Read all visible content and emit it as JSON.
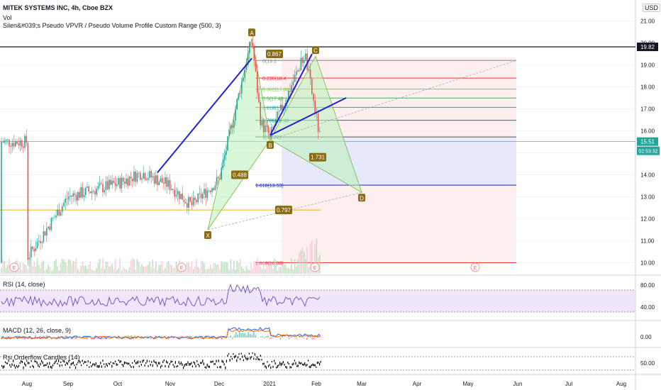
{
  "header": {
    "symbol": "MITEK SYSTEMS INC, 4h, Cboe BZX",
    "vol": "Vol",
    "indicator": "Silen&#039;s Pseudo VPVR / Pseudo Volume Profile Custom Range (500, 3)",
    "currency": "USD"
  },
  "indicators": {
    "rsi": "RSI (14, close)",
    "macd": "MACD (12, 26, close, 9)",
    "rsi_candles": "Rsi Orderflow Candles (14)"
  },
  "price_badges": {
    "high": "19.82",
    "last": "15.51",
    "countdown": "02:53:32"
  },
  "pattern_points": [
    "A",
    "B",
    "C",
    "D",
    "X"
  ],
  "ratio_badges": [
    "0.867",
    "0.488",
    "0.797",
    "1.731"
  ],
  "fib_labels": [
    "0(19.2",
    "0.236(18.4",
    "0.382(17.90",
    "0.5(17.49",
    "0.618(17.07",
    "0.786(16.48",
    "1(15.72)",
    "1.618(13.53)",
    "2.618(10.00)"
  ],
  "colors": {
    "up": "#26a69a",
    "down": "#ef5350",
    "pattern_fill": "#b9f0b9",
    "trendline": "#1e22d6",
    "rsi_band": "#e6d6f5"
  },
  "chart_data": {
    "type": "candlestick",
    "x_axis_labels": [
      "Aug",
      "Sep",
      "Oct",
      "Nov",
      "Dec",
      "2021",
      "Feb",
      "Mar",
      "Apr",
      "May",
      "Jun",
      "Jul",
      "Aug"
    ],
    "y_axis_labels": [
      "21.00",
      "20.00",
      "19.00",
      "18.00",
      "17.00",
      "16.00",
      "15.00",
      "14.00",
      "13.00",
      "12.00",
      "11.00",
      "10.00"
    ],
    "ylim": [
      9.5,
      21.5
    ],
    "rsi_axis_labels": [
      "80.00",
      "40.00"
    ],
    "macd_axis_labels": [
      "0.00"
    ],
    "rsi_candles_axis_labels": [
      "50.00"
    ],
    "events": [
      "E",
      "E",
      "E",
      "E"
    ],
    "approx_close_path": [
      {
        "x": "Aug",
        "y": 10.2
      },
      {
        "x": "Sep",
        "y": 13.0
      },
      {
        "x": "Oct",
        "y": 13.6
      },
      {
        "x": "Oct-mid",
        "y": 14.1
      },
      {
        "x": "Nov",
        "y": 13.5
      },
      {
        "x": "Nov-mid",
        "y": 12.6
      },
      {
        "x": "Dec",
        "y": 13.8
      },
      {
        "x": "Dec-mid",
        "y": 20.2
      },
      {
        "x": "Dec-end",
        "y": 16.3
      },
      {
        "x": "2021",
        "y": 15.8
      },
      {
        "x": "Jan-end",
        "y": 19.5
      },
      {
        "x": "Feb",
        "y": 15.5
      }
    ],
    "harmonic_pattern": {
      "X": 11.5,
      "A": 20.2,
      "B": 15.6,
      "C": 19.4,
      "D": 13.2
    },
    "fib_levels": [
      19.2,
      18.4,
      17.9,
      17.49,
      17.07,
      16.48,
      15.72,
      13.53,
      10.0
    ],
    "horizontal_levels": [
      19.82,
      15.51,
      12.4
    ]
  }
}
